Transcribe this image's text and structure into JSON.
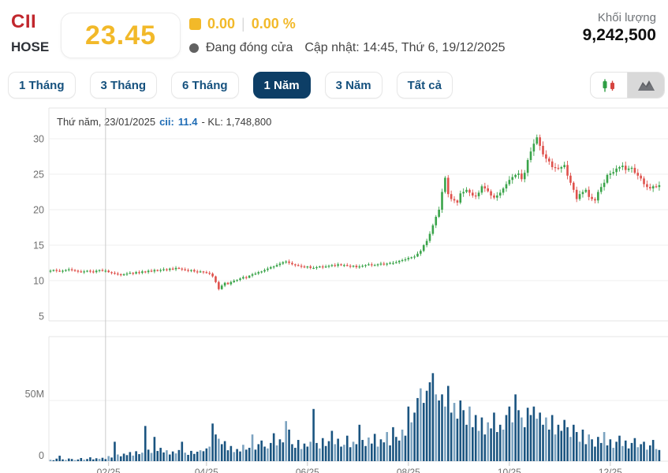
{
  "header": {
    "symbol": "CII",
    "exchange": "HOSE",
    "price": "23.45",
    "change": "0.00",
    "change_percent": "0.00 %",
    "status": "Đang đóng cửa",
    "updated": "Cập nhật: 14:45, Thứ 6, 19/12/2025",
    "volume_label": "Khối lượng",
    "volume_value": "9,242,500",
    "accent_yellow": "#f2b929",
    "symbol_red": "#c1272d"
  },
  "ranges": {
    "r1": "1 Tháng",
    "r2": "3 Tháng",
    "r3": "6 Tháng",
    "r4": "1 Năm",
    "r5": "3 Năm",
    "r6": "Tất cả",
    "selected": "1 Năm"
  },
  "tooltip": {
    "date": "Thứ năm, 23/01/2025",
    "symbol_label": "cii:",
    "value": "11.4",
    "kl": "- KL: 1,748,800"
  },
  "chart_data": {
    "type": "candlestick",
    "price_ticks": [
      30,
      25,
      20,
      15,
      10,
      5
    ],
    "volume_ticks": [
      "50M",
      "0"
    ],
    "x_labels": [
      "02/25",
      "04/25",
      "06/25",
      "08/25",
      "10/25",
      "12/25"
    ],
    "crosshair_index": 18,
    "up_color": "#3aa44a",
    "down_color": "#df514c",
    "volume_color": "#1a5480",
    "volume_color_light": "#7ca3c0",
    "closes": [
      11.4,
      11.5,
      11.4,
      11.3,
      11.4,
      11.5,
      11.6,
      11.5,
      11.4,
      11.3,
      11.2,
      11.3,
      11.4,
      11.3,
      11.2,
      11.4,
      11.5,
      11.4,
      11.4,
      11.2,
      11.1,
      11.0,
      10.9,
      10.8,
      10.9,
      11.0,
      11.1,
      11.0,
      11.2,
      11.1,
      11.3,
      11.2,
      11.4,
      11.3,
      11.5,
      11.4,
      11.5,
      11.6,
      11.5,
      11.7,
      11.6,
      11.8,
      11.7,
      11.6,
      11.5,
      11.4,
      11.5,
      11.3,
      11.2,
      11.3,
      11.2,
      11.1,
      11.0,
      10.6,
      9.8,
      8.8,
      9.3,
      9.7,
      9.5,
      9.8,
      10.0,
      10.1,
      10.3,
      10.5,
      10.4,
      10.7,
      10.9,
      11.0,
      11.2,
      11.3,
      11.5,
      11.7,
      11.9,
      12.0,
      12.2,
      12.4,
      12.6,
      12.7,
      12.5,
      12.3,
      12.2,
      12.1,
      12.0,
      11.9,
      12.0,
      11.8,
      11.8,
      11.9,
      12.0,
      11.9,
      12.0,
      12.1,
      12.2,
      12.1,
      12.3,
      12.2,
      12.2,
      12.1,
      12.0,
      12.1,
      11.9,
      12.0,
      12.1,
      12.2,
      12.3,
      12.2,
      12.2,
      12.3,
      12.4,
      12.3,
      12.4,
      12.5,
      12.5,
      12.6,
      12.8,
      12.9,
      13.0,
      13.2,
      13.3,
      13.4,
      13.8,
      14.2,
      15.0,
      15.6,
      16.6,
      17.8,
      19.0,
      20.0,
      22.5,
      24.5,
      22.2,
      21.5,
      21.3,
      21.0,
      22.3,
      22.5,
      22.8,
      22.4,
      22.0,
      21.9,
      22.4,
      23.3,
      23.0,
      22.6,
      22.0,
      21.7,
      22.0,
      22.4,
      23.0,
      23.6,
      24.2,
      24.6,
      24.9,
      25.1,
      24.3,
      25.2,
      27.0,
      28.2,
      29.3,
      30.2,
      29.0,
      27.8,
      27.2,
      26.8,
      26.0,
      25.9,
      25.8,
      26.0,
      26.3,
      24.8,
      23.8,
      22.8,
      21.5,
      22.2,
      22.5,
      22.8,
      21.8,
      21.5,
      21.3,
      22.5,
      23.2,
      23.8,
      24.9,
      25.1,
      25.3,
      25.8,
      26.0,
      26.2,
      25.6,
      25.8,
      25.9,
      25.2,
      24.8,
      24.4,
      23.6,
      23.2,
      23.0,
      23.3,
      23.2,
      23.45
    ],
    "volumes_m": [
      1.2,
      0.8,
      2.1,
      4.5,
      1.5,
      1.0,
      2.2,
      1.8,
      0.9,
      1.4,
      2.6,
      1.2,
      1.8,
      3.2,
      1.5,
      2.4,
      1.9,
      2.8,
      1.7,
      4.2,
      3.0,
      16.0,
      5.5,
      4.0,
      6.2,
      5.0,
      7.5,
      4.6,
      8.2,
      5.8,
      7.0,
      29.0,
      9.5,
      6.8,
      20.0,
      8.4,
      11.0,
      7.2,
      9.0,
      5.5,
      8.0,
      6.4,
      9.2,
      16.0,
      7.0,
      5.2,
      8.5,
      6.0,
      7.8,
      9.0,
      8.2,
      10.5,
      12.0,
      31.0,
      22.0,
      18.5,
      14.0,
      16.5,
      9.0,
      12.5,
      7.5,
      10.0,
      8.0,
      13.5,
      9.5,
      11.0,
      22.0,
      9.5,
      14.0,
      17.0,
      12.0,
      10.5,
      15.0,
      23.0,
      13.0,
      18.0,
      15.5,
      33.0,
      26.0,
      14.0,
      11.0,
      17.5,
      10.0,
      14.5,
      12.0,
      16.0,
      43.0,
      15.0,
      10.5,
      19.0,
      12.5,
      16.5,
      25.0,
      14.0,
      18.5,
      12.0,
      13.5,
      21.0,
      11.5,
      16.0,
      14.0,
      30.0,
      17.5,
      12.5,
      19.5,
      14.5,
      22.5,
      12.0,
      18.0,
      15.5,
      24.0,
      13.0,
      28.0,
      20.0,
      17.0,
      26.0,
      21.0,
      45.0,
      32.0,
      40.0,
      52.0,
      60.0,
      48.0,
      58.0,
      65.0,
      72.5,
      55.0,
      50.0,
      55.0,
      45.0,
      62.0,
      40.0,
      48.0,
      35.0,
      50.0,
      42.0,
      30.0,
      45.0,
      28.0,
      38.0,
      25.0,
      36.0,
      22.0,
      32.0,
      27.0,
      40.0,
      24.0,
      30.0,
      26.0,
      38.0,
      45.0,
      32.0,
      55.0,
      42.0,
      36.0,
      28.0,
      44.0,
      38.0,
      45.0,
      35.0,
      40.0,
      30.0,
      36.0,
      26.0,
      38.0,
      22.0,
      30.0,
      25.0,
      34.0,
      28.0,
      20.0,
      30.0,
      24.0,
      16.0,
      26.0,
      14.0,
      22.0,
      18.0,
      12.0,
      20.0,
      15.0,
      24.0,
      13.0,
      18.0,
      11.0,
      16.0,
      21.0,
      12.5,
      17.0,
      10.5,
      15.0,
      19.0,
      11.5,
      14.0,
      16.0,
      9.5,
      13.0,
      17.5,
      10.0,
      9.2
    ]
  }
}
